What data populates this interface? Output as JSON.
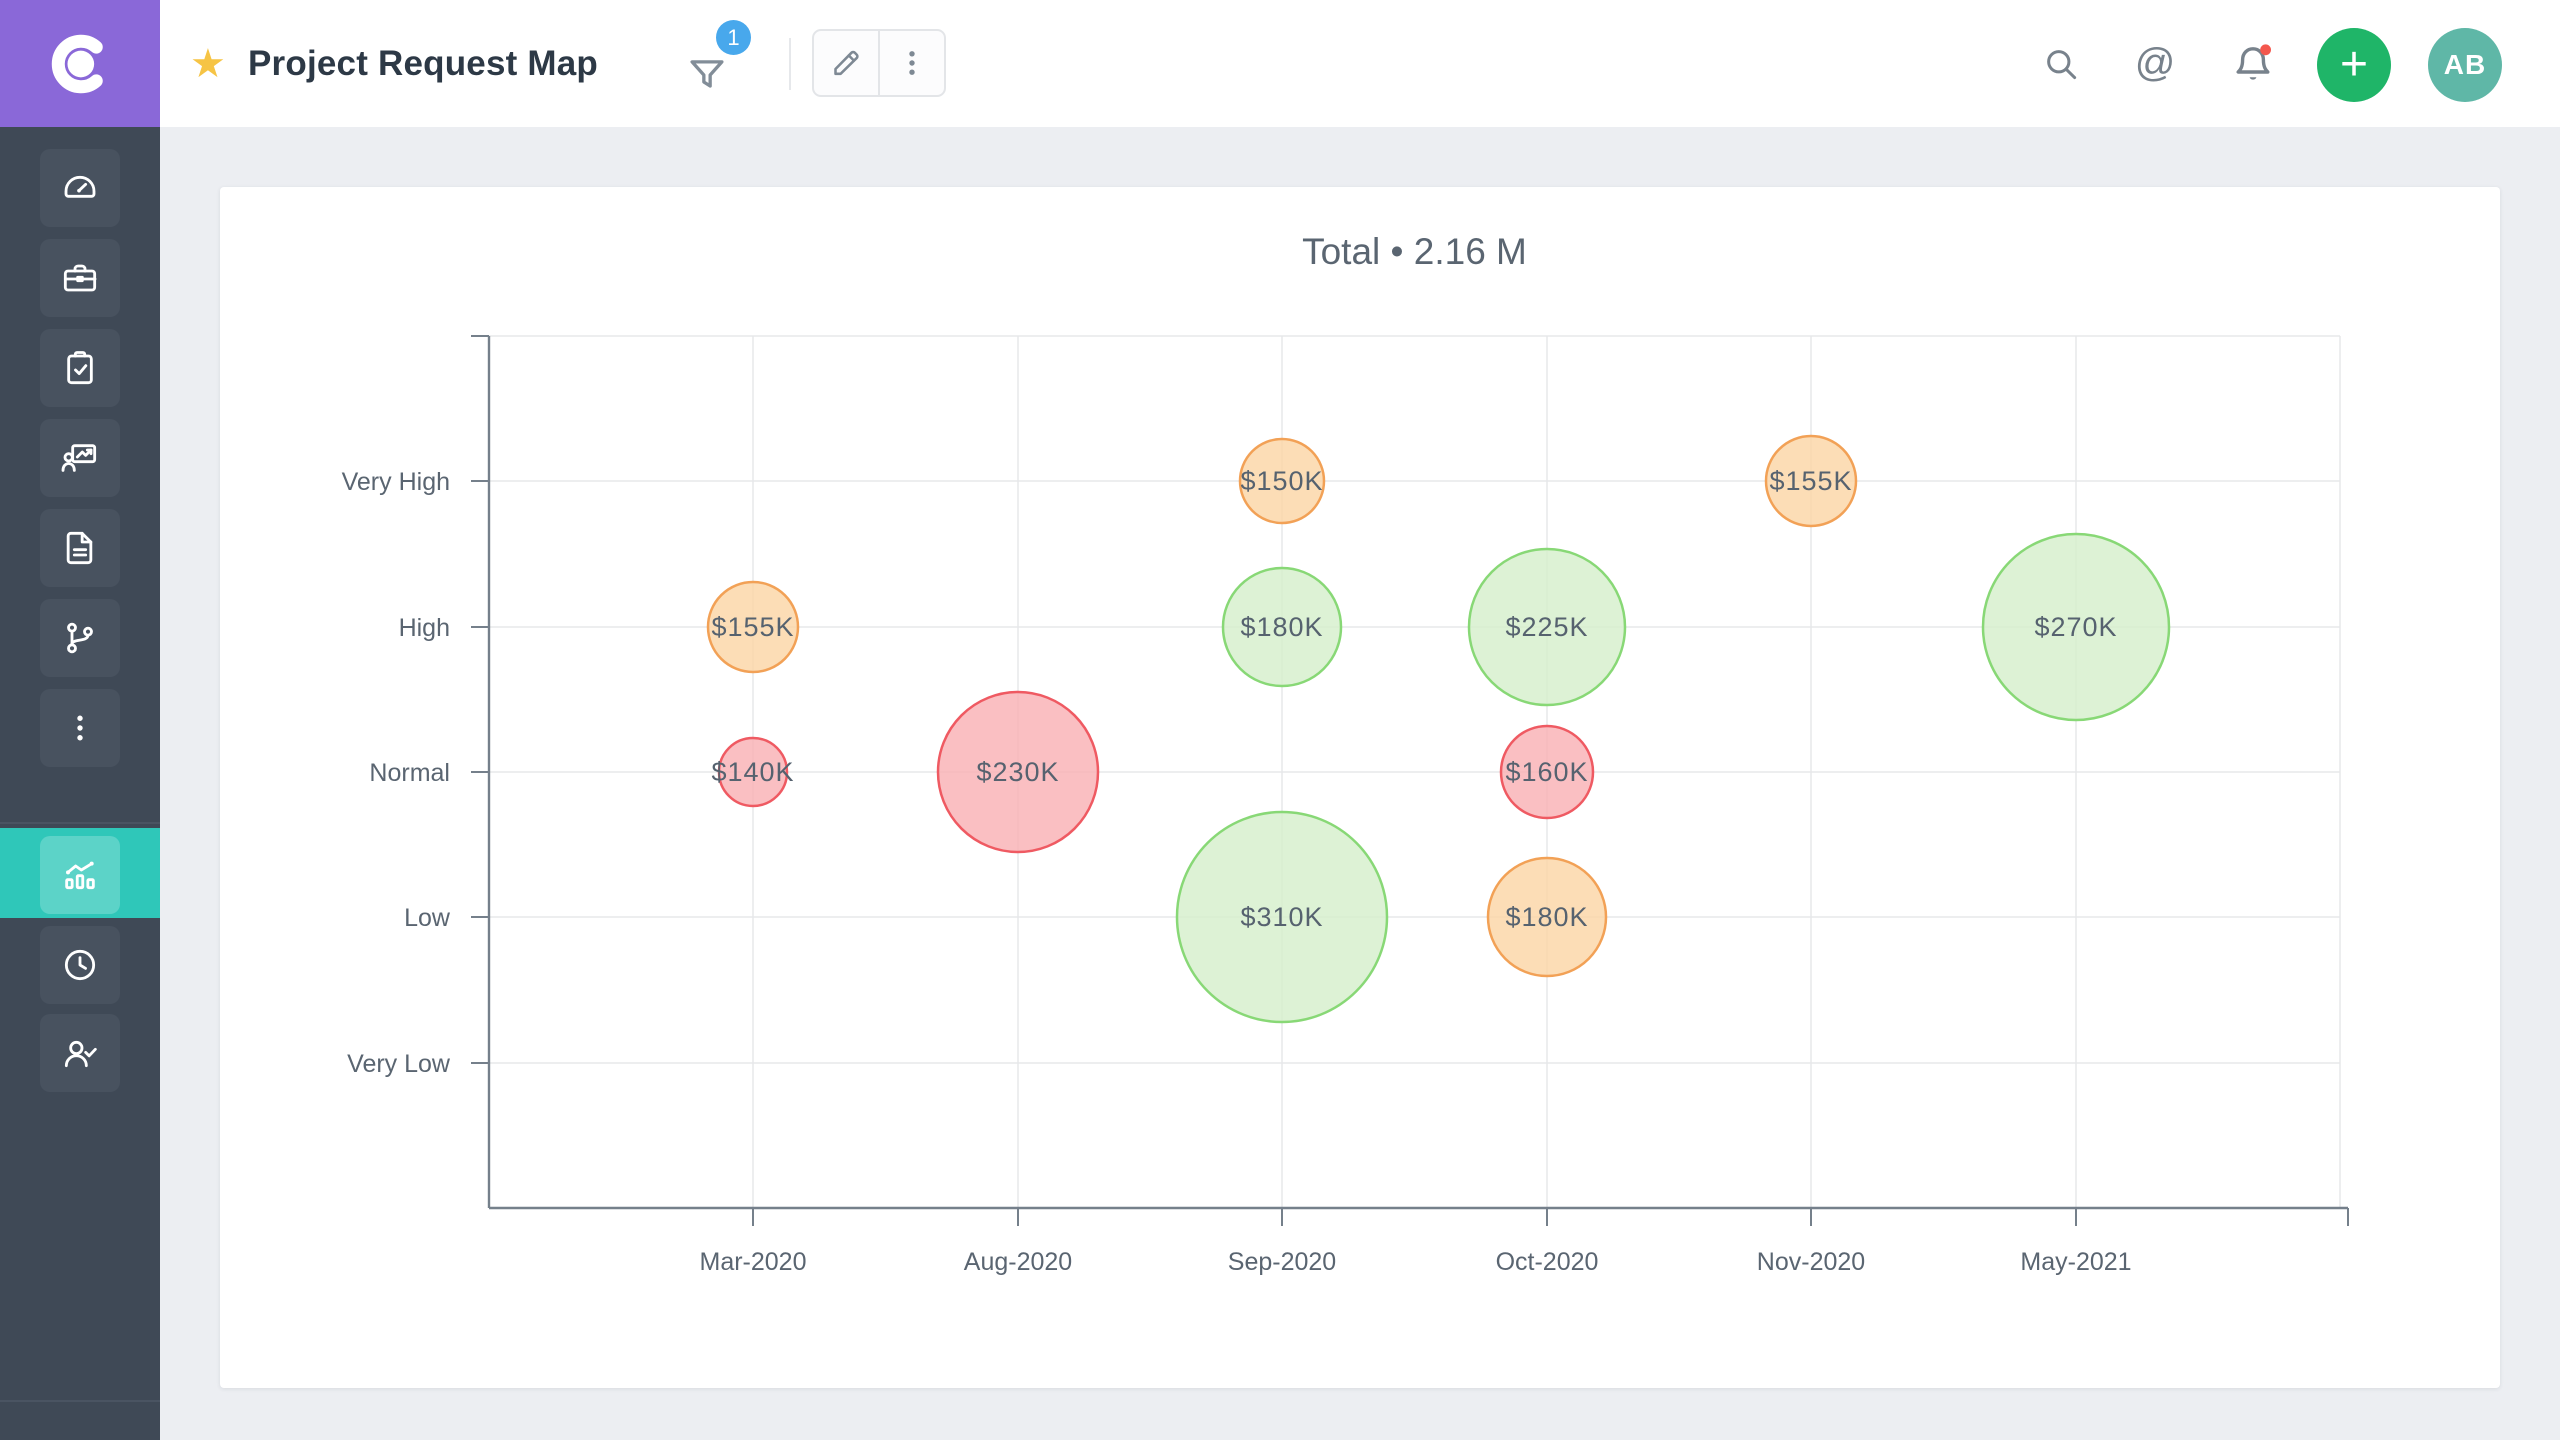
{
  "topbar": {
    "title": "Project Request Map",
    "star_glyph": "★",
    "filter_badge": "1",
    "at_glyph": "@",
    "plus_glyph": "+",
    "avatar_initials": "AB"
  },
  "sidebar": {
    "items": [
      "dashboard",
      "projects",
      "tasks",
      "reports",
      "documents",
      "workflow",
      "more"
    ],
    "active_item": "analytics",
    "footer_items": [
      "timesheet",
      "approvals"
    ]
  },
  "chart_data": {
    "type": "bubble",
    "title": "Total • 2.16 M",
    "x_categories": [
      "Mar-2020",
      "Aug-2020",
      "Sep-2020",
      "Oct-2020",
      "Nov-2020",
      "May-2021"
    ],
    "y_categories": [
      "Very High",
      "High",
      "Normal",
      "Low",
      "Very Low"
    ],
    "value_unit": "USD thousands",
    "grid": true,
    "legend": false,
    "points": [
      {
        "x": "Mar-2020",
        "y": "High",
        "label": "$155K",
        "value_k": 155,
        "color": "orange",
        "radius_px": 45
      },
      {
        "x": "Mar-2020",
        "y": "Normal",
        "label": "$140K",
        "value_k": 140,
        "color": "red",
        "radius_px": 34
      },
      {
        "x": "Aug-2020",
        "y": "Normal",
        "label": "$230K",
        "value_k": 230,
        "color": "red",
        "radius_px": 80
      },
      {
        "x": "Sep-2020",
        "y": "Very High",
        "label": "$150K",
        "value_k": 150,
        "color": "orange",
        "radius_px": 42
      },
      {
        "x": "Sep-2020",
        "y": "High",
        "label": "$180K",
        "value_k": 180,
        "color": "green",
        "radius_px": 59
      },
      {
        "x": "Sep-2020",
        "y": "Low",
        "label": "$310K",
        "value_k": 310,
        "color": "green",
        "radius_px": 105
      },
      {
        "x": "Oct-2020",
        "y": "High",
        "label": "$225K",
        "value_k": 225,
        "color": "green",
        "radius_px": 78
      },
      {
        "x": "Oct-2020",
        "y": "Normal",
        "label": "$160K",
        "value_k": 160,
        "color": "red",
        "radius_px": 46
      },
      {
        "x": "Oct-2020",
        "y": "Low",
        "label": "$180K",
        "value_k": 180,
        "color": "orange",
        "radius_px": 59
      },
      {
        "x": "Nov-2020",
        "y": "Very High",
        "label": "$155K",
        "value_k": 155,
        "color": "orange",
        "radius_px": 45
      },
      {
        "x": "May-2021",
        "y": "High",
        "label": "$270K",
        "value_k": 270,
        "color": "green",
        "radius_px": 93
      }
    ],
    "colors": {
      "orange": {
        "fill": "#FBD5A6",
        "stroke": "#F2A156"
      },
      "red": {
        "fill": "#F9B1B5",
        "stroke": "#EF5A62"
      },
      "green": {
        "fill": "#D6EFCC",
        "stroke": "#88D876"
      }
    },
    "axis_color": "#75808B",
    "grid_color": "#E7E8EA",
    "label_color": "#5A6571",
    "bubble_label_color": "#56626F"
  }
}
